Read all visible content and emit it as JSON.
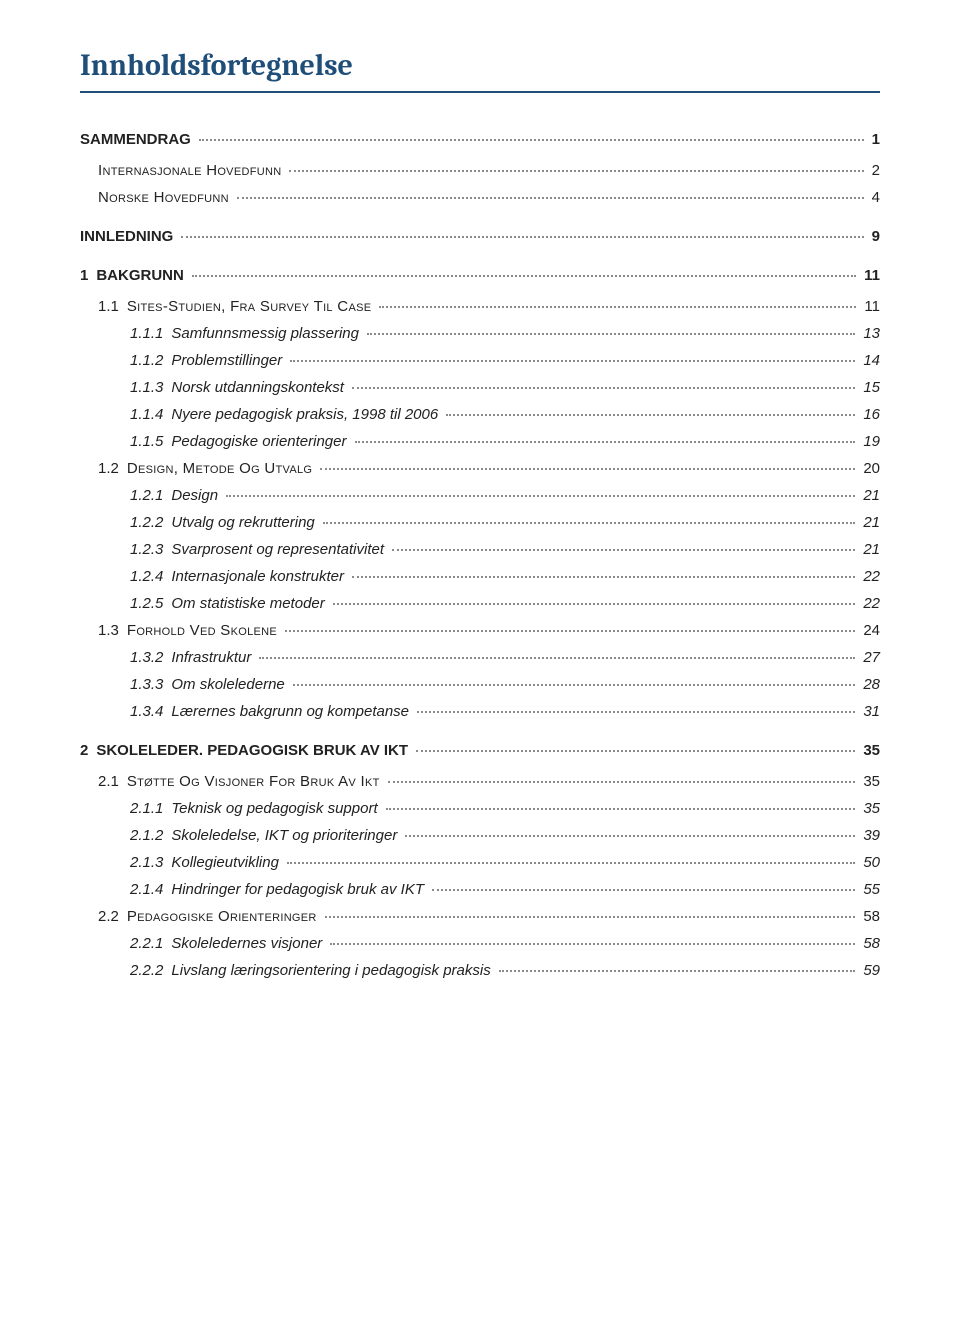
{
  "title": "Innholdsfortegnelse",
  "colors": {
    "title": "#1f4e79",
    "rule": "#1f4e79",
    "text": "#222222",
    "leader": "#8a8a8a",
    "background": "#ffffff"
  },
  "toc": [
    {
      "level": 0,
      "num": "",
      "label": "SAMMENDRAG",
      "page": "1",
      "gap": false
    },
    {
      "level": 1,
      "num": "",
      "label": "Internasjonale hovedfunn",
      "page": "2",
      "gap": false
    },
    {
      "level": 1,
      "num": "",
      "label": "Norske hovedfunn",
      "page": "4",
      "gap": false
    },
    {
      "level": 0,
      "num": "",
      "label": "INNLEDNING",
      "page": "9",
      "gap": true
    },
    {
      "level": 0,
      "num": "1",
      "label": "BAKGRUNN",
      "page": "11",
      "gap": true
    },
    {
      "level": 1,
      "num": "1.1",
      "label": "Sites-studien, fra survey til case",
      "page": "11",
      "gap": false
    },
    {
      "level": 2,
      "num": "1.1.1",
      "label": "Samfunnsmessig plassering",
      "page": "13",
      "gap": false
    },
    {
      "level": 2,
      "num": "1.1.2",
      "label": "Problemstillinger",
      "page": "14",
      "gap": false
    },
    {
      "level": 2,
      "num": "1.1.3",
      "label": "Norsk utdanningskontekst",
      "page": "15",
      "gap": false
    },
    {
      "level": 2,
      "num": "1.1.4",
      "label": "Nyere pedagogisk praksis, 1998 til 2006",
      "page": "16",
      "gap": false
    },
    {
      "level": 2,
      "num": "1.1.5",
      "label": "Pedagogiske orienteringer",
      "page": "19",
      "gap": false
    },
    {
      "level": 1,
      "num": "1.2",
      "label": "Design, metode og utvalg",
      "page": "20",
      "gap": false
    },
    {
      "level": 2,
      "num": "1.2.1",
      "label": "Design",
      "page": "21",
      "gap": false
    },
    {
      "level": 2,
      "num": "1.2.2",
      "label": "Utvalg og rekruttering",
      "page": "21",
      "gap": false
    },
    {
      "level": 2,
      "num": "1.2.3",
      "label": "Svarprosent og representativitet",
      "page": "21",
      "gap": false
    },
    {
      "level": 2,
      "num": "1.2.4",
      "label": "Internasjonale konstrukter",
      "page": "22",
      "gap": false
    },
    {
      "level": 2,
      "num": "1.2.5",
      "label": "Om statistiske metoder",
      "page": "22",
      "gap": false
    },
    {
      "level": 1,
      "num": "1.3",
      "label": "Forhold ved skolene",
      "page": "24",
      "gap": false
    },
    {
      "level": 2,
      "num": "1.3.2",
      "label": "Infrastruktur",
      "page": "27",
      "gap": false
    },
    {
      "level": 2,
      "num": "1.3.3",
      "label": "Om skolelederne",
      "page": "28",
      "gap": false
    },
    {
      "level": 2,
      "num": "1.3.4",
      "label": "Lærernes bakgrunn og kompetanse",
      "page": "31",
      "gap": false
    },
    {
      "level": 0,
      "num": "2",
      "label": "SKOLELEDER. PEDAGOGISK BRUK AV IKT",
      "page": "35",
      "gap": true
    },
    {
      "level": 1,
      "num": "2.1",
      "label": "Støtte og visjoner for bruk av IKT",
      "page": "35",
      "gap": false
    },
    {
      "level": 2,
      "num": "2.1.1",
      "label": "Teknisk og pedagogisk support",
      "page": "35",
      "gap": false
    },
    {
      "level": 2,
      "num": "2.1.2",
      "label": "Skoleledelse, IKT og prioriteringer",
      "page": "39",
      "gap": false
    },
    {
      "level": 2,
      "num": "2.1.3",
      "label": "Kollegieutvikling",
      "page": "50",
      "gap": false
    },
    {
      "level": 2,
      "num": "2.1.4",
      "label": "Hindringer for pedagogisk bruk av IKT",
      "page": "55",
      "gap": false
    },
    {
      "level": 1,
      "num": "2.2",
      "label": "Pedagogiske orienteringer",
      "page": "58",
      "gap": false
    },
    {
      "level": 2,
      "num": "2.2.1",
      "label": "Skoleledernes visjoner",
      "page": "58",
      "gap": false
    },
    {
      "level": 2,
      "num": "2.2.2",
      "label": "Livslang læringsorientering i pedagogisk praksis",
      "page": "59",
      "gap": false
    }
  ]
}
